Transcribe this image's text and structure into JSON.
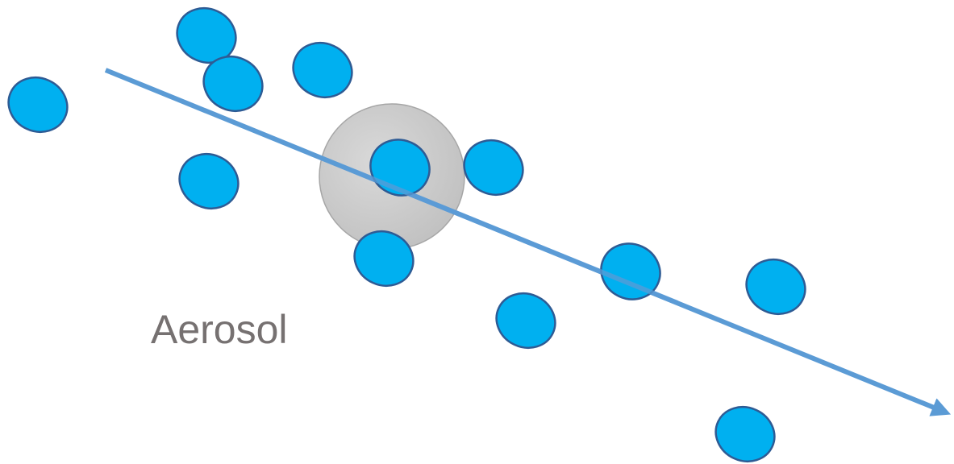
{
  "diagram": {
    "label": "Aerosol",
    "colors": {
      "molecule_fill": "#00b0f0",
      "molecule_stroke": "#2e5b94",
      "aerosol_fill": "#c9c9c9",
      "aerosol_stroke": "#a6a6a6",
      "beam": "#5b9bd5",
      "label": "#767171"
    },
    "elements": {
      "aerosol_particle": "aerosol-particle",
      "molecules": "gas-molecule",
      "beam": "light-beam-arrow"
    }
  }
}
